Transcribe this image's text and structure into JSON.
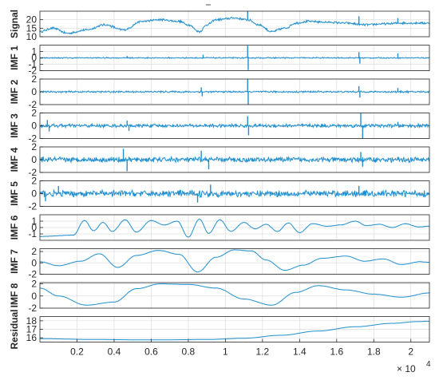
{
  "chart_data": {
    "type": "line",
    "title": "",
    "line_color": "#1f8fcf",
    "grid": true,
    "x_axis": {
      "range": [
        0,
        21000
      ],
      "ticks": [
        2000,
        4000,
        6000,
        8000,
        10000,
        12000,
        14000,
        16000,
        18000,
        20000
      ],
      "tick_labels": [
        "0.2",
        "0.4",
        "0.6",
        "0.8",
        "1",
        "1.2",
        "1.4",
        "1.6",
        "1.8",
        "2"
      ],
      "exponent_base": "× 10",
      "exponent_power": "4"
    },
    "panels": [
      {
        "name": "signal",
        "ylabel": "Signal",
        "ylim": [
          10,
          25
        ],
        "ticks": [
          10,
          15,
          20
        ],
        "tick_labels": [
          "10",
          "15",
          "20"
        ],
        "control_x": [
          0,
          700,
          1500,
          2500,
          3500,
          4500,
          5500,
          6500,
          7500,
          8000,
          8600,
          9000,
          9500,
          10500,
          11200,
          11800,
          12500,
          13200,
          13800,
          14500,
          15500,
          16500,
          17500,
          18500,
          19500,
          20500,
          21000
        ],
        "control_y": [
          13,
          15,
          12,
          14,
          17,
          14,
          19,
          20,
          19,
          17,
          13,
          17,
          20,
          21,
          20,
          17,
          13,
          15,
          18,
          19,
          18.5,
          18,
          17,
          17.5,
          18,
          18,
          18
        ],
        "noise": 0.7,
        "freq": 0.18,
        "spikes": [
          {
            "x": 11200,
            "y": 25
          },
          {
            "x": 17200,
            "y": 22
          },
          {
            "x": 19300,
            "y": 21
          }
        ]
      },
      {
        "name": "imf1",
        "ylabel": "IMF 1",
        "ylim": [
          -2,
          2
        ],
        "ticks": [
          -2,
          -1,
          0,
          1
        ],
        "tick_labels": [
          "-2",
          "-1",
          "0",
          "1"
        ],
        "control_x": [
          0,
          21000
        ],
        "control_y": [
          0,
          0
        ],
        "noise": 0.1,
        "freq": 0.9,
        "spikes": [
          {
            "x": 11200,
            "y": 1.9
          },
          {
            "x": 11230,
            "y": -1.9
          },
          {
            "x": 17200,
            "y": 0.9
          },
          {
            "x": 17250,
            "y": -0.9
          },
          {
            "x": 19300,
            "y": 0.7
          },
          {
            "x": 8800,
            "y": 0.5
          },
          {
            "x": 4700,
            "y": 0.3
          }
        ]
      },
      {
        "name": "imf2",
        "ylabel": "IMF 2",
        "ylim": [
          -2,
          2
        ],
        "ticks": [
          -2,
          0,
          2
        ],
        "tick_labels": [
          "-2",
          "0",
          "2"
        ],
        "control_x": [
          0,
          21000
        ],
        "control_y": [
          0,
          0
        ],
        "noise": 0.15,
        "freq": 0.7,
        "spikes": [
          {
            "x": 11200,
            "y": 2.0
          },
          {
            "x": 11230,
            "y": -2.0
          },
          {
            "x": 17200,
            "y": 0.9
          },
          {
            "x": 17250,
            "y": -0.9
          },
          {
            "x": 8700,
            "y": 0.7
          },
          {
            "x": 8750,
            "y": -0.7
          },
          {
            "x": 19300,
            "y": 0.6
          }
        ]
      },
      {
        "name": "imf3",
        "ylabel": "IMF 3",
        "ylim": [
          -2,
          2
        ],
        "ticks": [
          -2,
          0,
          2
        ],
        "tick_labels": [
          "-2",
          "0",
          "2"
        ],
        "control_x": [
          0,
          21000
        ],
        "control_y": [
          0,
          0
        ],
        "noise": 0.3,
        "freq": 0.45,
        "spikes": [
          {
            "x": 400,
            "y": 0.9
          },
          {
            "x": 500,
            "y": -0.9
          },
          {
            "x": 4700,
            "y": 0.8
          },
          {
            "x": 4800,
            "y": -0.8
          },
          {
            "x": 11200,
            "y": 1.5
          },
          {
            "x": 11250,
            "y": -1.5
          },
          {
            "x": 17300,
            "y": 2.0
          },
          {
            "x": 17400,
            "y": -2.0
          },
          {
            "x": 19300,
            "y": 0.6
          }
        ]
      },
      {
        "name": "imf4",
        "ylabel": "IMF 4",
        "ylim": [
          -2,
          2
        ],
        "ticks": [
          -2,
          0,
          2
        ],
        "tick_labels": [
          "-2",
          "0",
          "2"
        ],
        "control_x": [
          0,
          21000
        ],
        "control_y": [
          0,
          0
        ],
        "noise": 0.45,
        "freq": 0.3,
        "spikes": [
          {
            "x": 4500,
            "y": 1.7
          },
          {
            "x": 4700,
            "y": -1.8
          },
          {
            "x": 8700,
            "y": 1.4
          },
          {
            "x": 9100,
            "y": -1.5
          },
          {
            "x": 17300,
            "y": 1.2
          },
          {
            "x": 17400,
            "y": -1.1
          }
        ]
      },
      {
        "name": "imf5",
        "ylabel": "IMF 5",
        "ylim": [
          -2,
          2
        ],
        "ticks": [
          -2,
          0,
          2
        ],
        "tick_labels": [
          "-2",
          "0",
          "2"
        ],
        "control_x": [
          0,
          21000
        ],
        "control_y": [
          0,
          0
        ],
        "noise": 0.55,
        "freq": 0.18,
        "spikes": [
          {
            "x": 300,
            "y": -1.2
          },
          {
            "x": 1000,
            "y": 1.2
          },
          {
            "x": 8500,
            "y": -1.4
          },
          {
            "x": 9200,
            "y": 1.4
          },
          {
            "x": 17200,
            "y": 1.2
          }
        ]
      },
      {
        "name": "imf6",
        "ylabel": "IMF 6",
        "ylim": [
          -2,
          2
        ],
        "ticks": [
          -1,
          0,
          1
        ],
        "tick_labels": [
          "-1",
          "0",
          "1"
        ],
        "control_x": [
          0,
          1800,
          2400,
          2900,
          3400,
          3900,
          4600,
          5200,
          6000,
          6700,
          7400,
          8000,
          8600,
          9100,
          9700,
          10300,
          11000,
          11600,
          12200,
          12800,
          13400,
          14000,
          14700,
          15500,
          16200,
          17000,
          17600,
          18300,
          19000,
          19700,
          20400,
          21000
        ],
        "control_y": [
          -1.4,
          -1.2,
          1.1,
          -0.5,
          0.8,
          -0.6,
          1.2,
          -0.7,
          1.1,
          0.4,
          1.0,
          -1.5,
          1.3,
          -0.9,
          1.2,
          -0.6,
          0.8,
          -0.2,
          0.5,
          -0.6,
          0.7,
          -0.8,
          0.6,
          0.2,
          0.4,
          1.0,
          0.3,
          0.5,
          0.0,
          0.6,
          0.1,
          0.2
        ],
        "noise": 0.03,
        "freq": 0.5,
        "spikes": []
      },
      {
        "name": "imf7",
        "ylabel": "IMF 7",
        "ylim": [
          -2,
          2.5
        ],
        "ticks": [
          -2,
          0,
          2
        ],
        "tick_labels": [
          "-2",
          "0",
          "2"
        ],
        "control_x": [
          0,
          1000,
          2200,
          3200,
          4200,
          5200,
          6400,
          7500,
          8500,
          9500,
          10500,
          11400,
          12200,
          13200,
          14200,
          15200,
          16500,
          17500,
          18500,
          19500,
          20500,
          21000
        ],
        "control_y": [
          0.2,
          -0.5,
          0.3,
          1.6,
          -0.8,
          1.3,
          2.2,
          1.5,
          -1.6,
          1.0,
          2.3,
          2.1,
          0.5,
          -1.3,
          -0.4,
          0.8,
          1.2,
          0.3,
          0.7,
          -0.3,
          0.2,
          0.1
        ],
        "noise": 0.02,
        "freq": 0.5,
        "spikes": []
      },
      {
        "name": "imf8",
        "ylabel": "IMF 8",
        "ylim": [
          -2,
          2.2
        ],
        "ticks": [
          -2,
          0,
          2
        ],
        "tick_labels": [
          "-2",
          "0",
          "2"
        ],
        "control_x": [
          0,
          1000,
          2500,
          4000,
          5200,
          6500,
          8000,
          9500,
          11000,
          12500,
          13800,
          15000,
          16500,
          18000,
          19500,
          21000
        ],
        "control_y": [
          1.3,
          0.0,
          -1.5,
          -1.0,
          1.2,
          2.0,
          1.9,
          1.3,
          -0.5,
          -1.5,
          0.6,
          1.7,
          1.0,
          0.3,
          -0.2,
          0.5
        ],
        "noise": 0.02,
        "freq": 0.5,
        "spikes": []
      },
      {
        "name": "residual",
        "ylabel": "Residual",
        "ylim": [
          15.5,
          18.5
        ],
        "ticks": [
          16,
          17,
          18
        ],
        "tick_labels": [
          "16",
          "17",
          "18"
        ],
        "control_x": [
          0,
          3000,
          6000,
          9000,
          11000,
          13000,
          15000,
          17000,
          19000,
          20300,
          21000
        ],
        "control_y": [
          15.9,
          15.8,
          15.75,
          15.8,
          15.95,
          16.3,
          16.8,
          17.3,
          17.7,
          17.9,
          17.95
        ],
        "noise": 0.0,
        "freq": 0.5,
        "spikes": []
      }
    ]
  }
}
